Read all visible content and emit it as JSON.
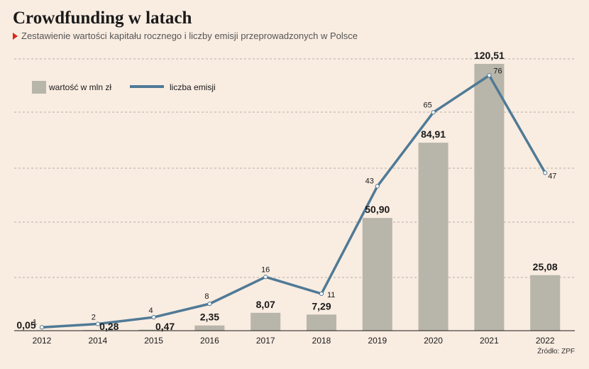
{
  "header": {
    "title": "Crowdfunding w latach",
    "subtitle": "Zestawienie wartości kapitału rocznego i liczby emisji przeprowadzonych w Polsce"
  },
  "source": "Źródło: ZPF",
  "colors": {
    "background": "#f9ece1",
    "bar": "#b8b5aa",
    "line": "#4f7a96",
    "grid": "#9a9a9a",
    "accent": "#d9261c"
  },
  "chart_data": {
    "type": "bar",
    "title": "Crowdfunding w latach",
    "subtitle": "Zestawienie wartości kapitału rocznego i liczby emisji przeprowadzonych w Polsce",
    "categories": [
      "2012",
      "2014",
      "2015",
      "2016",
      "2017",
      "2018",
      "2019",
      "2020",
      "2021",
      "2022"
    ],
    "series": [
      {
        "name": "wartość w mln zł",
        "type": "bar",
        "values": [
          0.05,
          0.28,
          0.47,
          2.35,
          8.07,
          7.29,
          50.9,
          84.91,
          120.51,
          25.08
        ],
        "labels": [
          "0,05",
          "0,28",
          "0,47",
          "2,35",
          "8,07",
          "7,29",
          "50,90",
          "84,91",
          "120,51",
          "25,08"
        ]
      },
      {
        "name": "liczba emisji",
        "type": "line",
        "values": [
          1,
          2,
          4,
          8,
          16,
          11,
          43,
          65,
          76,
          47
        ],
        "labels": [
          "1",
          "2",
          "4",
          "8",
          "16",
          "11",
          "43",
          "65",
          "76",
          "47"
        ]
      }
    ],
    "ylim_bars": [
      0,
      125
    ],
    "ylim_line": [
      0,
      90
    ],
    "grid": true,
    "legend_position": "top-left"
  }
}
